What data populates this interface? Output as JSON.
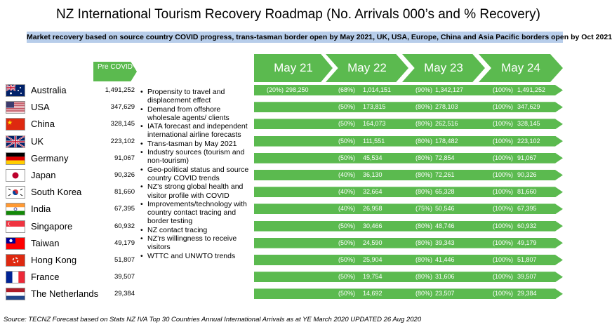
{
  "title": "NZ International Tourism Recovery Roadmap (No. Arrivals 000’s and % Recovery)",
  "subtitle": "Market recovery based on source country COVID progress, trans-tasman border open by May 2021, UK, USA, Europe, China and Asia Pacific borders open by Oct 2021",
  "pre_covid_label": "Pre COVID",
  "years": [
    "May 21",
    "May 22",
    "May 23",
    "May 24"
  ],
  "rows": [
    {
      "country": "Australia",
      "flag": "flag-australia-icon",
      "pre": "1,491,252",
      "m21p": "(20%)",
      "m21v": "298,250",
      "m22p": "(68%)",
      "m22v": "1,014,151",
      "m23p": "(90%)",
      "m23v": "1,342,127",
      "m24p": "(100%)",
      "m24v": "1,491,252"
    },
    {
      "country": "USA",
      "flag": "flag-usa-icon",
      "pre": "347,629",
      "m22p": "(50%)",
      "m22v": "173,815",
      "m23p": "(80%)",
      "m23v": "278,103",
      "m24p": "(100%)",
      "m24v": "347,629"
    },
    {
      "country": "China",
      "flag": "flag-china-icon",
      "pre": "328,145",
      "m22p": "(50%)",
      "m22v": "164,073",
      "m23p": "(80%)",
      "m23v": "262,516",
      "m24p": "(100%)",
      "m24v": "328,145"
    },
    {
      "country": "UK",
      "flag": "flag-uk-icon",
      "pre": "223,102",
      "m22p": "(50%)",
      "m22v": "111,551",
      "m23p": "(80%)",
      "m23v": "178,482",
      "m24p": "(100%)",
      "m24v": "223,102"
    },
    {
      "country": "Germany",
      "flag": "flag-germany-icon",
      "pre": "91,067",
      "m22p": "(50%)",
      "m22v": "45,534",
      "m23p": "(80%)",
      "m23v": "72,854",
      "m24p": "(100%)",
      "m24v": "91,067"
    },
    {
      "country": "Japan",
      "flag": "flag-japan-icon",
      "pre": "90,326",
      "m22p": "(40%)",
      "m22v": "36,130",
      "m23p": "(80%)",
      "m23v": "72,261",
      "m24p": "(100%)",
      "m24v": "90,326"
    },
    {
      "country": "South Korea",
      "flag": "flag-south-korea-icon",
      "pre": "81,660",
      "m22p": "(40%)",
      "m22v": "32,664",
      "m23p": "(80%)",
      "m23v": "65,328",
      "m24p": "(100%)",
      "m24v": "81,660"
    },
    {
      "country": "India",
      "flag": "flag-india-icon",
      "pre": "67,395",
      "m22p": "(40%)",
      "m22v": "26,958",
      "m23p": "(75%)",
      "m23v": "50,546",
      "m24p": "(100%)",
      "m24v": "67,395"
    },
    {
      "country": "Singapore",
      "flag": "flag-singapore-icon",
      "pre": "60,932",
      "m22p": "(50%)",
      "m22v": "30,466",
      "m23p": "(80%)",
      "m23v": "48,746",
      "m24p": "(100%)",
      "m24v": "60,932"
    },
    {
      "country": "Taiwan",
      "flag": "flag-taiwan-icon",
      "pre": "49,179",
      "m22p": "(50%)",
      "m22v": "24,590",
      "m23p": "(80%)",
      "m23v": "39,343",
      "m24p": "(100%)",
      "m24v": "49,179"
    },
    {
      "country": "Hong Kong",
      "flag": "flag-hong-kong-icon",
      "pre": "51,807",
      "m22p": "(50%)",
      "m22v": "25,904",
      "m23p": "(80%)",
      "m23v": "41,446",
      "m24p": "(100%)",
      "m24v": "51,807"
    },
    {
      "country": "France",
      "flag": "flag-france-icon",
      "pre": "39,507",
      "m22p": "(50%)",
      "m22v": "19,754",
      "m23p": "(80%)",
      "m23v": "31,606",
      "m24p": "(100%)",
      "m24v": "39,507"
    },
    {
      "country": "The Netherlands",
      "flag": "flag-netherlands-icon",
      "pre": "29,384",
      "m22p": "(50%)",
      "m22v": "14,692",
      "m23p": "(80%)",
      "m23v": "23,507",
      "m24p": "(100%)",
      "m24v": "29,384"
    }
  ],
  "bullets": [
    "Propensity to travel and displacement effect",
    "Demand from offshore wholesale agents/ clients",
    "IATA forecast and independent international airline forecasts",
    "Trans-tasman by May 2021",
    "Industry sources (tourism and non-tourism)",
    "Geo-political status and source country COVID trends",
    "NZ’s strong global health and visitor profile with COVID",
    "Improvements/technology with country contact tracing and border testing",
    "NZ contact tracing",
    "NZ’rs willingness to receive visitors",
    "WTTC and UNWTO trends"
  ],
  "source": "Source: TECNZ Forecast based on Stats NZ IVA Top 30 Countries Annual International Arrivals as at YE March 2020 UPDATED 26 Aug 2020",
  "colors": {
    "arrow_green": "#5bba4f",
    "subtitle_bg": "#b7cdea"
  }
}
